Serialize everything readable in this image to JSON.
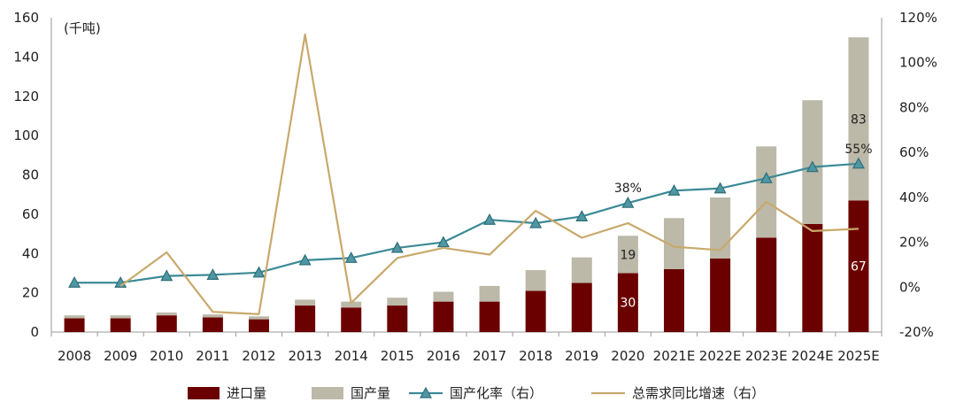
{
  "chart_data": {
    "type": "bar",
    "unit_label": "(千吨)",
    "categories": [
      "2008",
      "2009",
      "2010",
      "2011",
      "2012",
      "2013",
      "2014",
      "2015",
      "2016",
      "2017",
      "2018",
      "2019",
      "2020",
      "2021E",
      "2022E",
      "2023E",
      "2024E",
      "2025E"
    ],
    "y_left": {
      "ylim": [
        0,
        160
      ],
      "ticks": [
        0,
        20,
        40,
        60,
        80,
        100,
        120,
        140,
        160
      ]
    },
    "y_right": {
      "ylim": [
        -20,
        120
      ],
      "ticks": [
        "-20%",
        "0%",
        "20%",
        "40%",
        "60%",
        "80%",
        "100%",
        "120%"
      ],
      "tick_values": [
        -20,
        0,
        20,
        40,
        60,
        80,
        100,
        120
      ]
    },
    "series": [
      {
        "name": "进口量",
        "kind": "bar",
        "axis": "left",
        "stack": "total",
        "color": "#6b0000",
        "values": [
          7,
          7,
          8.5,
          7.5,
          6.5,
          13.5,
          12.5,
          13.5,
          15.5,
          15.5,
          21,
          25,
          30,
          32,
          37.5,
          48,
          55,
          67
        ]
      },
      {
        "name": "国产量",
        "kind": "bar",
        "axis": "left",
        "stack": "total",
        "color": "#bcb9a9",
        "values": [
          1.5,
          1.5,
          1.5,
          1.5,
          1.5,
          3,
          3,
          4,
          5,
          8,
          10.5,
          13,
          19,
          26,
          31,
          46.5,
          63,
          83
        ]
      },
      {
        "name": "国产化率（右）",
        "kind": "line",
        "axis": "right",
        "color": "#3b8a96",
        "marker": "triangle",
        "values": [
          2,
          2,
          5,
          5.5,
          6.5,
          12,
          13,
          17.5,
          20,
          30,
          28.5,
          31.5,
          37.5,
          43,
          44,
          48.5,
          53.5,
          55
        ]
      },
      {
        "name": "总需求同比增速（右）",
        "kind": "line",
        "axis": "right",
        "color": "#c8a96b",
        "values": [
          null,
          0.5,
          15.5,
          -11,
          -12,
          112.5,
          -7,
          13,
          17.5,
          14.5,
          34,
          22,
          28.5,
          18,
          16.5,
          38,
          25,
          26
        ]
      }
    ],
    "data_labels": [
      {
        "series": "进口量",
        "category": "2020",
        "text": "30",
        "color": "#ffffff"
      },
      {
        "series": "国产量",
        "category": "2020",
        "text": "19",
        "color": "#222222"
      },
      {
        "series": "国产化率（右）",
        "category": "2020",
        "text": "38%",
        "color": "#222222"
      },
      {
        "series": "进口量",
        "category": "2025E",
        "text": "67",
        "color": "#ffffff"
      },
      {
        "series": "国产量",
        "category": "2025E",
        "text": "83",
        "color": "#222222"
      },
      {
        "series": "国产化率（右）",
        "category": "2025E",
        "text": "55%",
        "color": "#222222"
      }
    ],
    "legend": {
      "position": "bottom",
      "items": [
        "进口量",
        "国产量",
        "国产化率（右）",
        "总需求同比增速（右）"
      ]
    },
    "grid": false
  }
}
